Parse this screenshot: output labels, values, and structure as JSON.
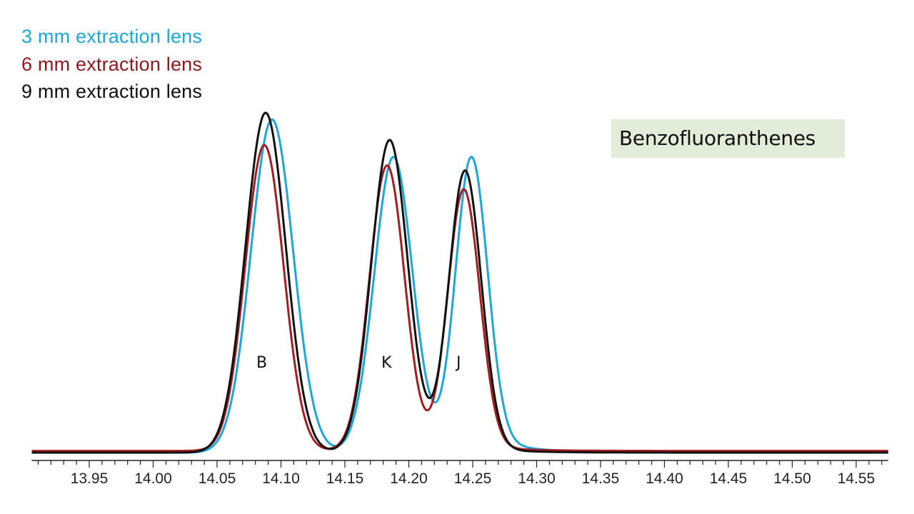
{
  "chart_data": {
    "type": "line",
    "title": "Benzofluoranthenes",
    "xlabel": "",
    "ylabel": "",
    "xlim": [
      13.905,
      14.575
    ],
    "x_ticks": [
      "13.95",
      "14.00",
      "14.05",
      "14.10",
      "14.15",
      "14.20",
      "14.25",
      "14.30",
      "14.35",
      "14.40",
      "14.45",
      "14.50",
      "14.55"
    ],
    "minor_tick_step": 0.01,
    "grid": false,
    "legend_position": "top-left",
    "annotations": [
      {
        "text": "B",
        "x": 14.087
      },
      {
        "text": "K",
        "x": 14.186
      },
      {
        "text": "J",
        "x": 14.245
      }
    ],
    "series": [
      {
        "name": "3 mm extraction lens",
        "color": "#1ea7d6",
        "baseline": 0.0,
        "peaks": [
          {
            "label": "B",
            "center": 14.093,
            "height": 0.98,
            "width": 0.0165
          },
          {
            "label": "K",
            "center": 14.188,
            "height": 0.87,
            "width": 0.015
          },
          {
            "label": "J",
            "center": 14.249,
            "height": 0.87,
            "width": 0.0125,
            "tail": 0.06
          }
        ]
      },
      {
        "name": "6 mm extraction lens",
        "color": "#a51c22",
        "baseline": 0.005,
        "peaks": [
          {
            "label": "B",
            "center": 14.087,
            "height": 0.9,
            "width": 0.015
          },
          {
            "label": "K",
            "center": 14.183,
            "height": 0.84,
            "width": 0.0138
          },
          {
            "label": "J",
            "center": 14.243,
            "height": 0.77,
            "width": 0.0125,
            "tail": 0.02
          }
        ]
      },
      {
        "name": "9 mm extraction lens",
        "color": "#111111",
        "baseline": 0.0,
        "peaks": [
          {
            "label": "B",
            "center": 14.088,
            "height": 1.0,
            "width": 0.0158
          },
          {
            "label": "K",
            "center": 14.185,
            "height": 0.92,
            "width": 0.0143
          },
          {
            "label": "J",
            "center": 14.244,
            "height": 0.83,
            "width": 0.0127,
            "tail": 0.02
          }
        ]
      }
    ]
  },
  "legend": {
    "items": [
      {
        "label": "3 mm extraction lens",
        "color": "#1ea7d6"
      },
      {
        "label": "6 mm extraction lens",
        "color": "#8b1a1e"
      },
      {
        "label": "9 mm extraction lens",
        "color": "#111111"
      }
    ]
  },
  "title_box": {
    "label": "Benzofluoranthenes",
    "background": "#e3ecd8"
  },
  "peak_labels": [
    "B",
    "K",
    "J"
  ]
}
